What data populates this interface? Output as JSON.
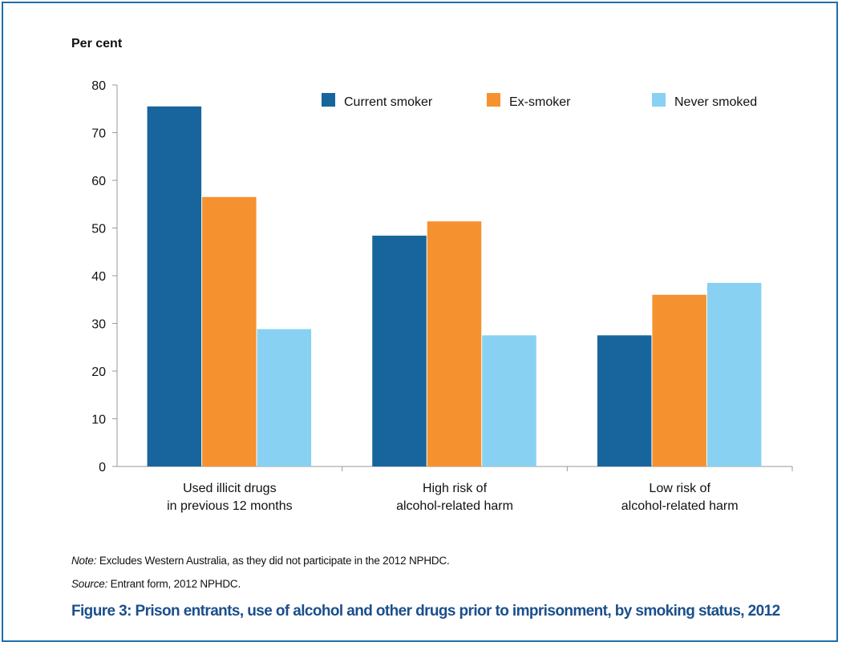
{
  "chart_data": {
    "type": "bar",
    "ylabel": "Per cent",
    "ylim": [
      0,
      80
    ],
    "yticks": [
      0,
      10,
      20,
      30,
      40,
      50,
      60,
      70,
      80
    ],
    "categories": [
      [
        "Used illicit drugs",
        "in previous 12 months"
      ],
      [
        "High risk of",
        "alcohol-related harm"
      ],
      [
        "Low risk of",
        "alcohol-related harm"
      ]
    ],
    "series": [
      {
        "name": "Current smoker",
        "color": "#17659c",
        "values": [
          75.5,
          48.4,
          27.5
        ]
      },
      {
        "name": "Ex-smoker",
        "color": "#f5922f",
        "values": [
          56.5,
          51.4,
          36.0
        ]
      },
      {
        "name": "Never smoked",
        "color": "#88d1f2",
        "values": [
          28.8,
          27.5,
          38.5
        ]
      }
    ],
    "legend_position": "top-right",
    "grid": false
  },
  "note": {
    "label": "Note:",
    "text": " Excludes Western Australia, as they did not participate in the 2012 NPHDC."
  },
  "source": {
    "label": "Source:",
    "text": " Entrant form, 2012 NPHDC."
  },
  "caption": "Figure 3: Prison entrants, use of alcohol and other drugs prior to imprisonment, by smoking status, 2012"
}
